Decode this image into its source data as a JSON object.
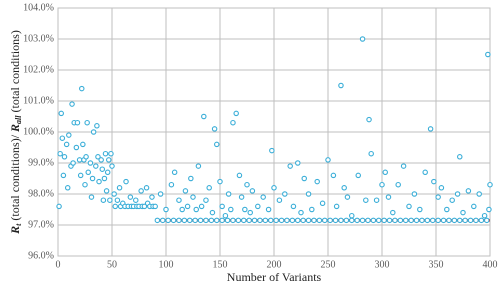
{
  "chart_data": {
    "type": "scatter",
    "xlabel": "Number of Variants",
    "ylabel": {
      "r1": "R",
      "s1": "t",
      "t1": " (total conditions)/ ",
      "r2": "R",
      "s2": "all",
      "t2": " (total conditions)"
    },
    "xlim": [
      0,
      400
    ],
    "xticks": [
      0,
      50,
      100,
      150,
      200,
      250,
      300,
      350,
      400
    ],
    "ylim": [
      96,
      104
    ],
    "yticks": [
      {
        "value": 96,
        "label": "96.0%"
      },
      {
        "value": 97,
        "label": "97.0%"
      },
      {
        "value": 98,
        "label": "98.0%"
      },
      {
        "value": 99,
        "label": "99.0%"
      },
      {
        "value": 100,
        "label": "100.0%"
      },
      {
        "value": 101,
        "label": "101.0%"
      },
      {
        "value": 102,
        "label": "102.0%"
      },
      {
        "value": 103,
        "label": "103.0%"
      },
      {
        "value": 104,
        "label": "104.0%"
      }
    ],
    "grid": true,
    "series": [
      {
        "style": "line",
        "color": "#e0302a",
        "x": [
          90,
          400
        ],
        "values": [
          97.15,
          97.15
        ]
      },
      {
        "style": "marker",
        "color": "#3aaed8",
        "x": [
          92,
          97,
          102,
          107,
          112,
          117,
          122,
          127,
          132,
          137,
          142,
          147,
          152,
          157,
          162,
          167,
          172,
          177,
          182,
          187,
          192,
          197,
          202,
          207,
          212,
          217,
          222,
          227,
          232,
          237,
          242,
          247,
          252,
          257,
          262,
          267,
          272,
          277,
          282,
          287,
          292,
          297,
          302,
          307,
          312,
          317,
          322,
          327,
          332,
          337,
          342,
          347,
          352,
          357,
          362,
          367,
          372,
          377,
          382,
          387,
          392,
          397
        ],
        "values": [
          97.15,
          97.15,
          97.15,
          97.15,
          97.15,
          97.15,
          97.15,
          97.15,
          97.15,
          97.15,
          97.15,
          97.15,
          97.15,
          97.15,
          97.15,
          97.15,
          97.15,
          97.15,
          97.15,
          97.15,
          97.15,
          97.15,
          97.15,
          97.15,
          97.15,
          97.15,
          97.15,
          97.15,
          97.15,
          97.15,
          97.15,
          97.15,
          97.15,
          97.15,
          97.15,
          97.15,
          97.15,
          97.15,
          97.15,
          97.15,
          97.15,
          97.15,
          97.15,
          97.15,
          97.15,
          97.15,
          97.15,
          97.15,
          97.15,
          97.15,
          97.15,
          97.15,
          97.15,
          97.15,
          97.15,
          97.15,
          97.15,
          97.15,
          97.15,
          97.15,
          97.15,
          97.15
        ]
      },
      {
        "style": "marker",
        "color": "#3aaed8",
        "x": [
          1,
          2,
          3,
          4,
          5,
          6,
          8,
          9,
          10,
          12,
          13,
          14,
          15,
          17,
          18,
          20,
          21,
          22,
          23,
          24,
          25,
          26,
          27,
          28,
          30,
          31,
          32,
          33,
          35,
          36,
          37,
          38,
          40,
          41,
          42,
          43,
          44,
          45,
          46,
          47,
          48,
          49,
          50,
          52,
          53,
          55,
          57,
          58,
          60,
          62,
          63,
          65,
          67,
          68,
          70,
          72,
          73,
          75,
          77,
          78,
          80,
          82,
          83,
          85,
          87,
          88,
          90,
          95,
          100,
          105,
          108,
          112,
          115,
          118,
          120,
          123,
          125,
          128,
          130,
          133,
          135,
          137,
          140,
          143,
          145,
          147,
          150,
          152,
          155,
          158,
          160,
          162,
          165,
          168,
          170,
          173,
          175,
          178,
          180,
          185,
          190,
          195,
          198,
          200,
          205,
          210,
          215,
          218,
          222,
          225,
          228,
          232,
          235,
          240,
          245,
          250,
          255,
          258,
          262,
          265,
          268,
          272,
          278,
          282,
          285,
          288,
          290,
          295,
          300,
          303,
          306,
          310,
          315,
          320,
          325,
          330,
          335,
          340,
          345,
          348,
          352,
          355,
          360,
          365,
          370,
          372,
          375,
          380,
          385,
          390,
          395,
          398,
          399,
          400
        ],
        "values": [
          97.6,
          99.3,
          100.6,
          99.8,
          98.6,
          99.2,
          99.6,
          98.2,
          99.9,
          98.9,
          100.9,
          99.0,
          100.3,
          99.5,
          100.3,
          99.1,
          98.6,
          101.4,
          99.6,
          99.1,
          98.3,
          99.2,
          100.3,
          98.7,
          99.0,
          97.9,
          98.5,
          100.0,
          98.9,
          100.2,
          99.2,
          98.4,
          99.1,
          98.8,
          97.8,
          98.5,
          99.3,
          98.1,
          98.7,
          99.1,
          97.8,
          99.3,
          98.9,
          98.0,
          97.6,
          97.8,
          98.2,
          97.6,
          97.7,
          97.6,
          98.4,
          97.6,
          97.9,
          97.6,
          97.6,
          97.8,
          97.6,
          97.6,
          98.1,
          97.6,
          97.6,
          98.2,
          97.7,
          97.6,
          97.9,
          97.6,
          97.6,
          98.0,
          97.5,
          98.3,
          98.7,
          97.8,
          97.5,
          98.1,
          97.6,
          98.5,
          97.9,
          97.5,
          98.9,
          97.6,
          100.5,
          97.8,
          98.2,
          97.4,
          100.1,
          99.6,
          98.4,
          97.6,
          97.3,
          98.0,
          97.5,
          100.3,
          100.6,
          98.6,
          97.9,
          97.5,
          98.3,
          97.4,
          98.1,
          97.6,
          97.9,
          97.5,
          99.4,
          98.2,
          97.8,
          98.0,
          98.9,
          97.6,
          99.0,
          97.4,
          98.5,
          98.0,
          97.5,
          98.4,
          97.7,
          99.1,
          98.6,
          97.6,
          101.5,
          98.2,
          97.9,
          97.3,
          98.6,
          103.0,
          97.8,
          100.4,
          99.3,
          97.8,
          98.3,
          98.7,
          97.9,
          97.4,
          98.3,
          98.9,
          97.6,
          98.0,
          97.5,
          98.7,
          100.1,
          98.4,
          97.9,
          98.2,
          97.5,
          97.8,
          98.0,
          99.2,
          97.4,
          98.1,
          97.6,
          98.0,
          97.3,
          102.5,
          97.5,
          98.3
        ]
      }
    ]
  }
}
